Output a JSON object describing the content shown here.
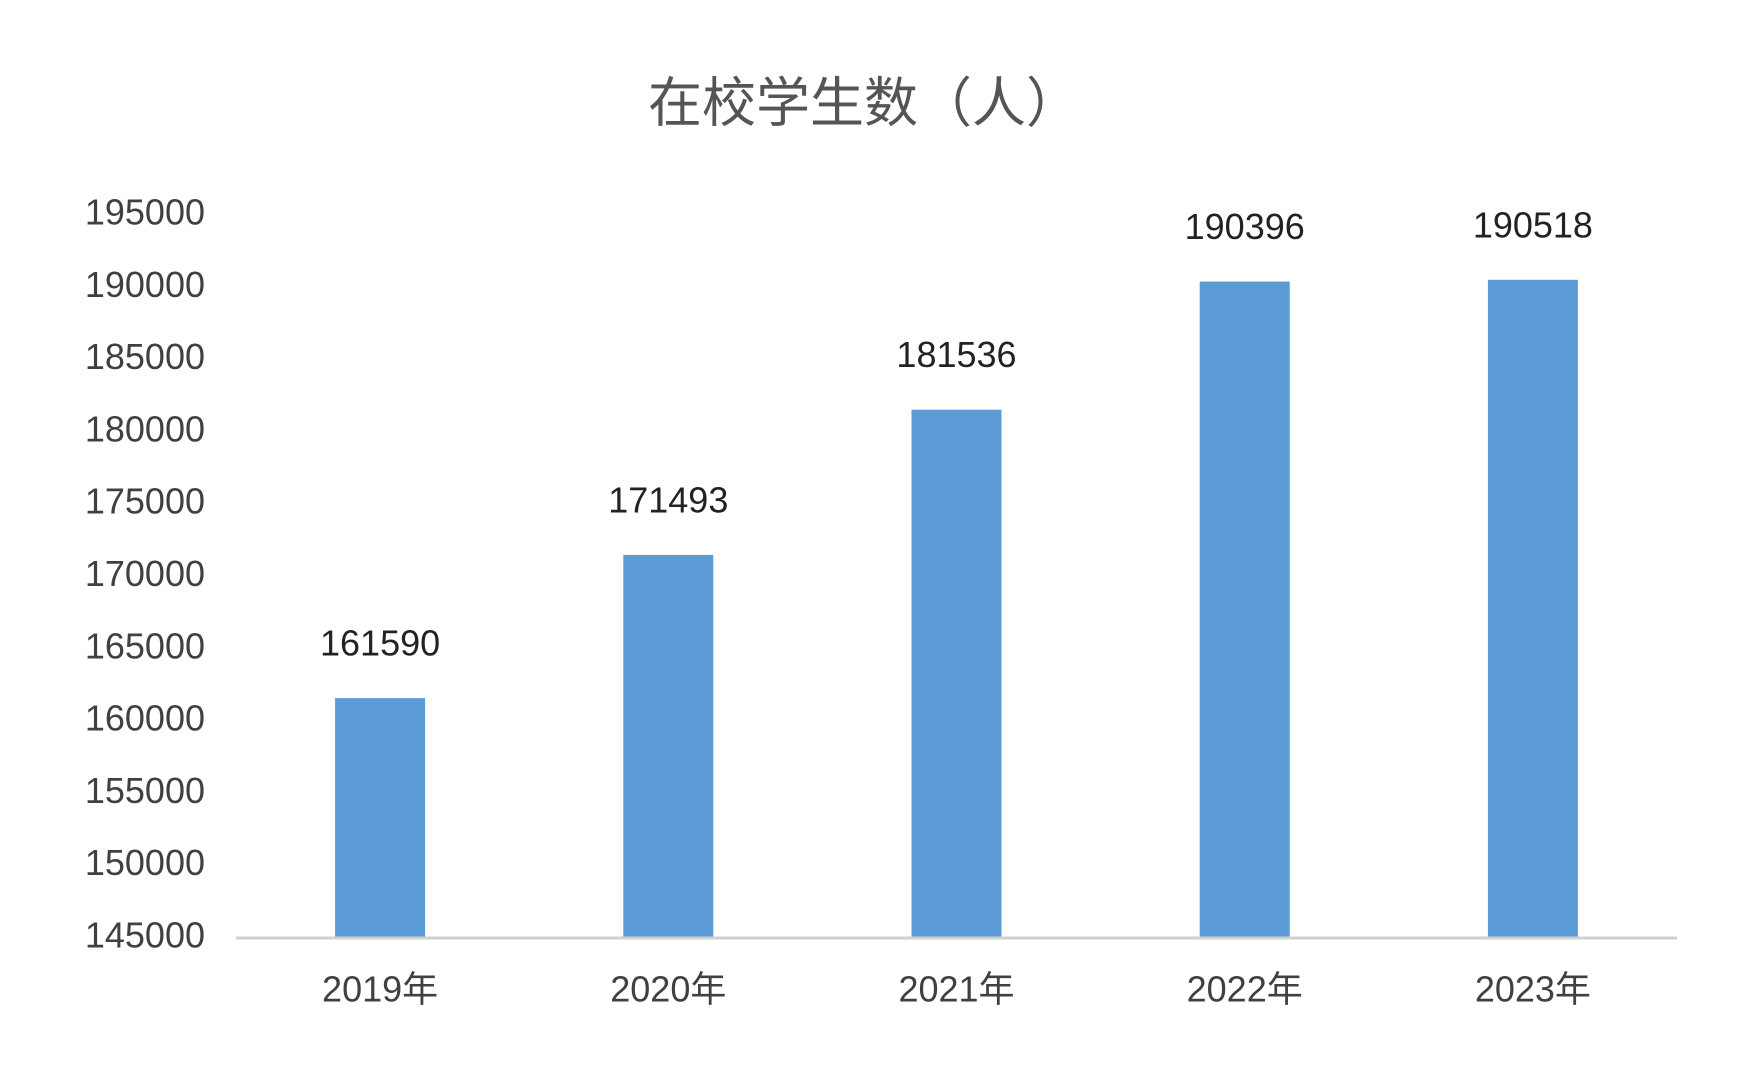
{
  "chart_data": {
    "type": "bar",
    "title": "在校学生数（人）",
    "categories": [
      "2019年",
      "2020年",
      "2021年",
      "2022年",
      "2023年"
    ],
    "values": [
      161590,
      171493,
      181536,
      190396,
      190518
    ],
    "color": "#5b9bd5",
    "ylim": [
      145000,
      195000
    ],
    "yticks": [
      145000,
      150000,
      155000,
      160000,
      165000,
      170000,
      175000,
      180000,
      185000,
      190000,
      195000
    ],
    "grid": false
  }
}
